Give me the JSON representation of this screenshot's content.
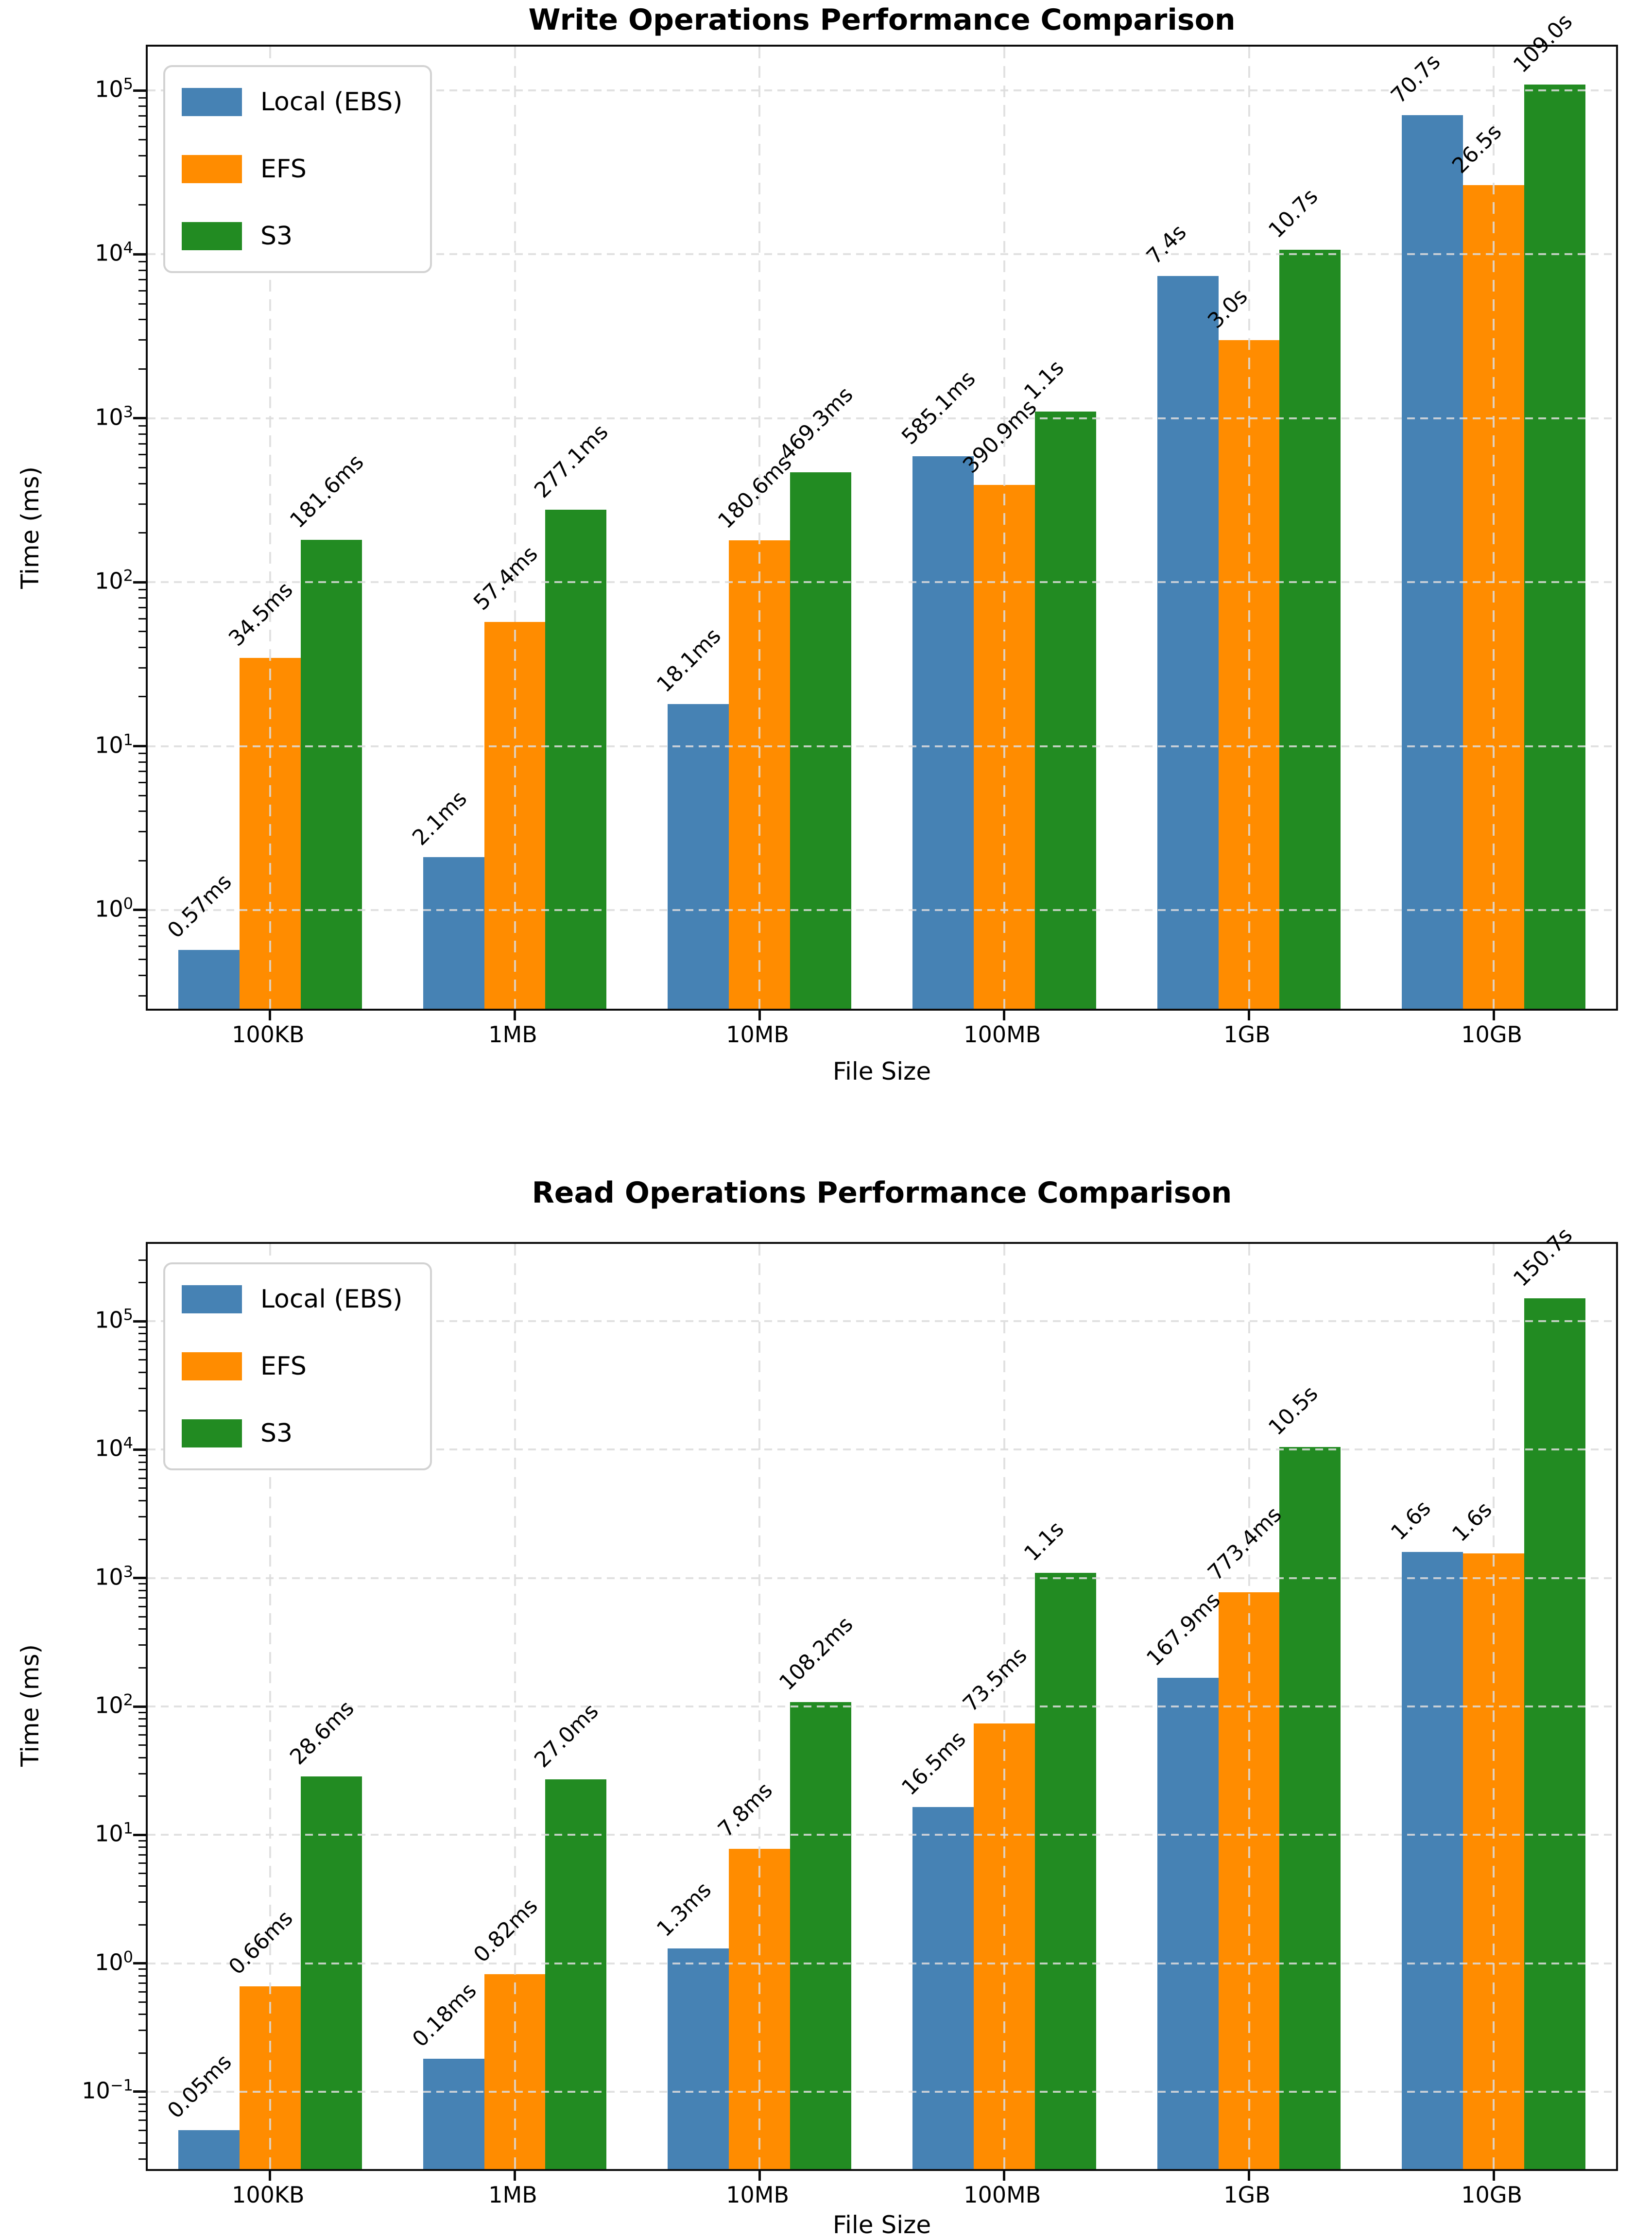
{
  "page": {
    "background": "#ffffff"
  },
  "chart_data": [
    {
      "type": "bar",
      "title": "Write Operations Performance Comparison",
      "xlabel": "File Size",
      "ylabel": "Time (ms)",
      "yscale": "log",
      "grid": true,
      "legend_position": "upper-left",
      "categories": [
        "100KB",
        "1MB",
        "10MB",
        "100MB",
        "1GB",
        "10GB"
      ],
      "ylim": [
        0.25,
        185000
      ],
      "ytick_exponents": [
        0,
        1,
        2,
        3,
        4,
        5
      ],
      "series": [
        {
          "name": "Local (EBS)",
          "color": "#4682b4",
          "values_ms": [
            0.57,
            2.1,
            18.1,
            585.1,
            7400,
            70700
          ],
          "labels": [
            "0.57ms",
            "2.1ms",
            "18.1ms",
            "585.1ms",
            "7.4s",
            "70.7s"
          ]
        },
        {
          "name": "EFS",
          "color": "#ff8c00",
          "values_ms": [
            34.5,
            57.4,
            180.6,
            390.9,
            3000,
            26500
          ],
          "labels": [
            "34.5ms",
            "57.4ms",
            "180.6ms",
            "390.9ms",
            "3.0s",
            "26.5s"
          ]
        },
        {
          "name": "S3",
          "color": "#228b22",
          "values_ms": [
            181.6,
            277.1,
            469.3,
            1100,
            10700,
            109000
          ],
          "labels": [
            "181.6ms",
            "277.1ms",
            "469.3ms",
            "1.1s",
            "10.7s",
            "109.0s"
          ]
        }
      ]
    },
    {
      "type": "bar",
      "title": "Read Operations Performance Comparison",
      "xlabel": "File Size",
      "ylabel": "Time (ms)",
      "yscale": "log",
      "grid": true,
      "legend_position": "upper-left",
      "categories": [
        "100KB",
        "1MB",
        "10MB",
        "100MB",
        "1GB",
        "10GB"
      ],
      "ylim": [
        0.025,
        400000
      ],
      "ytick_exponents": [
        -1,
        0,
        1,
        2,
        3,
        4,
        5
      ],
      "series": [
        {
          "name": "Local (EBS)",
          "color": "#4682b4",
          "values_ms": [
            0.05,
            0.18,
            1.3,
            16.5,
            167.9,
            1600
          ],
          "labels": [
            "0.05ms",
            "0.18ms",
            "1.3ms",
            "16.5ms",
            "167.9ms",
            "1.6s"
          ]
        },
        {
          "name": "EFS",
          "color": "#ff8c00",
          "values_ms": [
            0.66,
            0.82,
            7.8,
            73.5,
            773.4,
            1550
          ],
          "labels": [
            "0.66ms",
            "0.82ms",
            "7.8ms",
            "73.5ms",
            "773.4ms",
            "1.6s"
          ]
        },
        {
          "name": "S3",
          "color": "#228b22",
          "values_ms": [
            28.6,
            27.0,
            108.2,
            1100,
            10500,
            150700
          ],
          "labels": [
            "28.6ms",
            "27.0ms",
            "108.2ms",
            "1.1s",
            "10.5s",
            "150.7s"
          ]
        }
      ]
    }
  ]
}
